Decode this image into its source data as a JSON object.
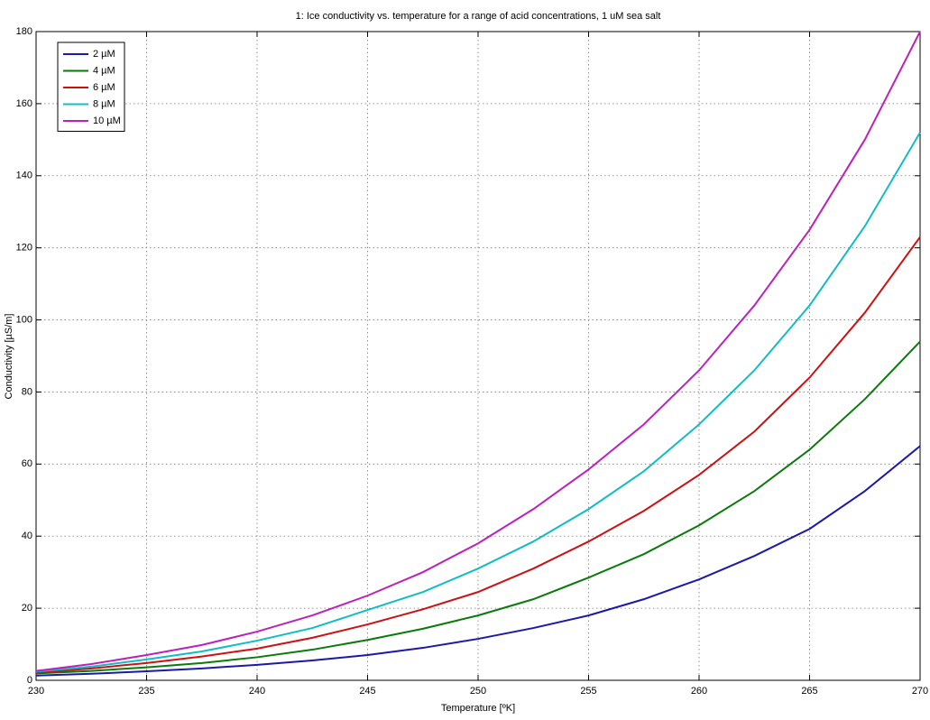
{
  "chart_data": {
    "type": "line",
    "title": "1: Ice conductivity vs. temperature for a range of acid concentrations,  1 uM sea salt",
    "xlabel": "Temperature [ºK]",
    "ylabel": "Conductivity [µS/m]",
    "x": [
      230,
      232.5,
      235,
      237.5,
      240,
      242.5,
      245,
      247.5,
      250,
      252.5,
      255,
      257.5,
      260,
      262.5,
      265,
      267.5,
      270
    ],
    "series": [
      {
        "name": "2 µM",
        "color": "#1a1aa6",
        "values": [
          1.3,
          1.8,
          2.5,
          3.3,
          4.3,
          5.5,
          7.0,
          9,
          11.5,
          14.5,
          18,
          22.5,
          28,
          34.5,
          42,
          52.5,
          65
        ]
      },
      {
        "name": "4 µM",
        "color": "#0a7a0a",
        "values": [
          1.9,
          2.6,
          3.6,
          4.8,
          6.4,
          8.5,
          11.2,
          14.3,
          18,
          22.5,
          28.5,
          35,
          43,
          52.5,
          64,
          78,
          94
        ]
      },
      {
        "name": "6 µM",
        "color": "#cc1111",
        "values": [
          2.1,
          3.3,
          4.8,
          6.6,
          8.8,
          11.8,
          15.5,
          19.7,
          24.5,
          31,
          38.5,
          47,
          57,
          69,
          84,
          102,
          123
        ]
      },
      {
        "name": "8 µM",
        "color": "#11bcc4",
        "values": [
          2.4,
          3.8,
          5.8,
          8,
          11,
          14.5,
          19.5,
          24.5,
          31,
          38.5,
          47.5,
          58,
          71,
          86,
          104,
          126,
          152
        ]
      },
      {
        "name": "10 µM",
        "color": "#bb22bb",
        "values": [
          2.6,
          4.5,
          7,
          9.8,
          13.5,
          18,
          23.5,
          30,
          38,
          47.5,
          58.5,
          71,
          86,
          104,
          125,
          150,
          180
        ]
      }
    ],
    "xlim": [
      230,
      270
    ],
    "xticks": [
      230,
      235,
      240,
      245,
      250,
      255,
      260,
      265,
      270
    ],
    "ylim": [
      0,
      180
    ],
    "yticks": [
      0,
      20,
      40,
      60,
      80,
      100,
      120,
      140,
      160,
      180
    ],
    "grid": true,
    "legend": "upper-left"
  }
}
